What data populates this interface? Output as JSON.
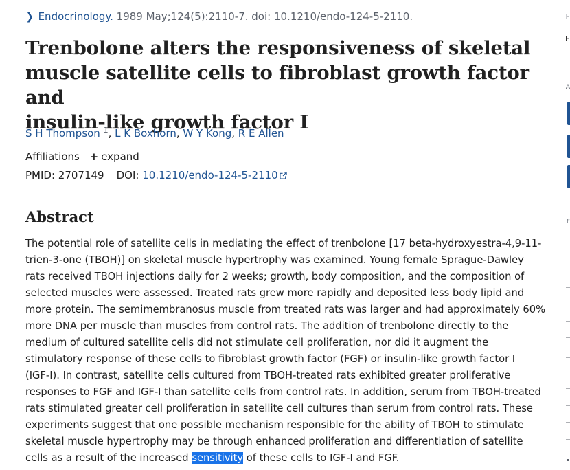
{
  "citation": {
    "journal": "Endocrinology.",
    "details": " 1989 May;124(5):2110-7. doi: 10.1210/endo-124-5-2110."
  },
  "title_lines": [
    "Trenbolone alters the responsiveness of skeletal",
    "muscle satellite cells to fibroblast growth factor and",
    "insulin-like growth factor I"
  ],
  "authors": [
    {
      "name": "S H Thompson",
      "sup": "1"
    },
    {
      "name": "L K Boxhorn"
    },
    {
      "name": "W Y Kong"
    },
    {
      "name": "R E Allen"
    }
  ],
  "affiliations": {
    "label": "Affiliations",
    "toggle": "expand",
    "toggle_icon": "plus-icon"
  },
  "ids": {
    "pmid_label": "PMID:",
    "pmid": "2707149",
    "doi_label": "DOI:",
    "doi": "10.1210/endo-124-5-2110"
  },
  "abstract": {
    "heading": "Abstract",
    "lines": [
      "The potential role of satellite cells in mediating the effect of trenbolone [17 beta-hydroxyestra-4,9-11-",
      "trien-3-one (TBOH)] on skeletal muscle hypertrophy was examined. Young female Sprague-Dawley",
      "rats received TBOH injections daily for 2 weeks; growth, body composition, and the composition of",
      "selected muscles were assessed. Treated rats grew more rapidly and deposited less body lipid and",
      "more protein. The semimembranosus muscle from treated rats was larger and had approximately 60%",
      "more DNA per muscle than muscles from control rats. The addition of trenbolone directly to the",
      "medium of cultured satellite cells did not stimulate cell proliferation, nor did it augment the",
      "stimulatory response of these cells to fibroblast growth factor (FGF) or insulin-like growth factor I",
      "(IGF-I). In contrast, satellite cells cultured from TBOH-treated rats exhibited greater proliferative",
      "responses to FGF and IGF-I than satellite cells from control rats. In addition, serum from TBOH-treated",
      "rats stimulated greater cell proliferation in satellite cell cultures than serum from control rats. These",
      "experiments suggest that one possible mechanism responsible for the ability of TBOH to stimulate",
      "skeletal muscle hypertrophy may be through enhanced proliferation and differentiation of satellite"
    ],
    "last_line_before": "cells as a result of the increased ",
    "highlighted": "sensitivity",
    "last_line_after": " of these cells to IGF-I and FGF."
  },
  "right_rail_letters": [
    "F",
    "E",
    "A",
    "F"
  ],
  "colors": {
    "link": "#205493",
    "highlight": "#1a73e8",
    "text": "#212121",
    "muted": "#5b616b"
  }
}
